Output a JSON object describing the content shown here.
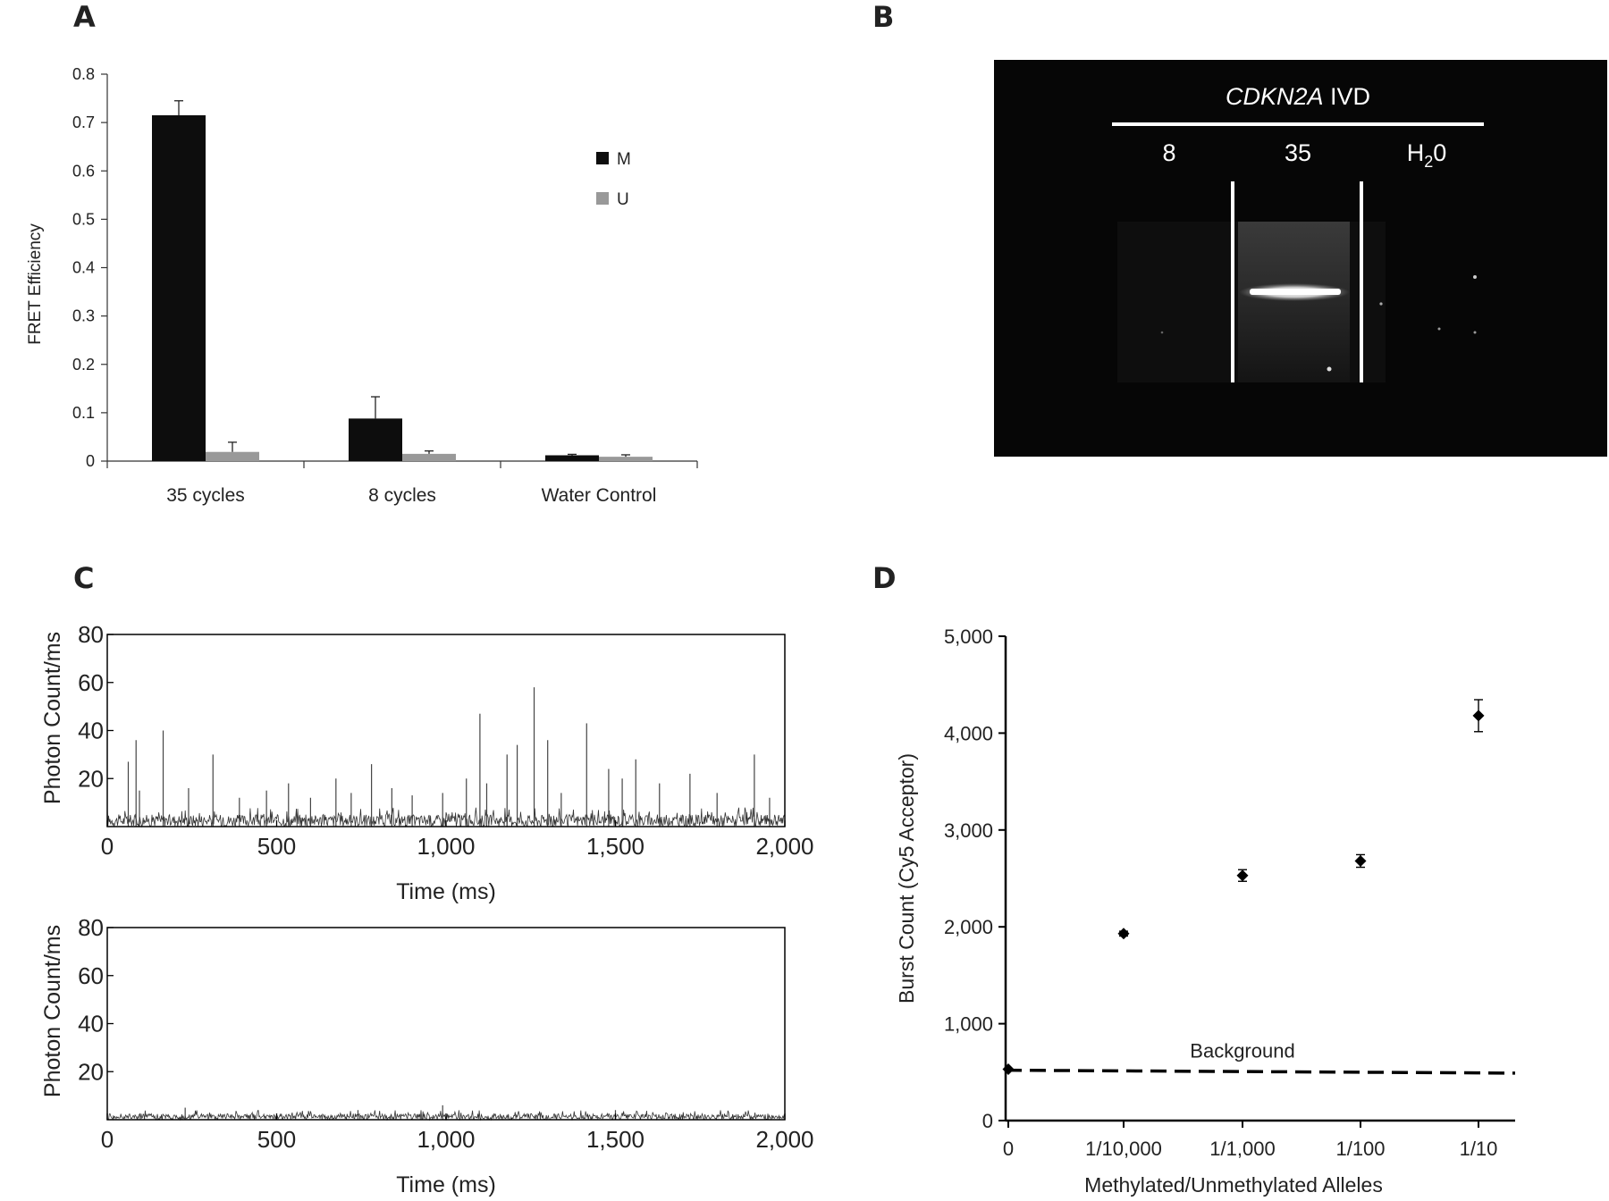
{
  "panels": {
    "a": "A",
    "b": "B",
    "c": "C",
    "d": "D"
  },
  "chart_data": [
    {
      "id": "A",
      "type": "bar",
      "ylabel": "FRET Efficiency",
      "xlabel": "",
      "title": "",
      "ylim": [
        0,
        0.8
      ],
      "yticks": [
        0,
        0.1,
        0.2,
        0.3,
        0.4,
        0.5,
        0.6,
        0.7,
        0.8
      ],
      "ytick_labels": [
        "0",
        "0.1",
        "0.2",
        "0.3",
        "0.4",
        "0.5",
        "0.6",
        "0.7",
        "0.8"
      ],
      "categories": [
        "35 cycles",
        "8 cycles",
        "Water Control"
      ],
      "series": [
        {
          "name": "M",
          "color": "#0d0d0d",
          "values": [
            0.715,
            0.088,
            0.012
          ],
          "errors": [
            0.03,
            0.045,
            0.002
          ]
        },
        {
          "name": "U",
          "color": "#999999",
          "values": [
            0.019,
            0.015,
            0.009
          ],
          "errors": [
            0.02,
            0.006,
            0.004
          ]
        }
      ],
      "legend_position": "upper-right"
    },
    {
      "id": "C-top",
      "type": "line",
      "xlabel": "Time (ms)",
      "ylabel": "Photon Count/ms",
      "xlim": [
        0,
        2000
      ],
      "ylim": [
        0,
        80
      ],
      "xticks": [
        0,
        500,
        1000,
        1500,
        2000
      ],
      "xtick_labels": [
        "0",
        "500",
        "1,000",
        "1,500",
        "2,000"
      ],
      "yticks": [
        20,
        40,
        60,
        80
      ],
      "ytick_labels": [
        "20",
        "40",
        "60",
        "80"
      ],
      "baseline_max": 5,
      "spikes": [
        {
          "x": 62,
          "y": 27
        },
        {
          "x": 85,
          "y": 36
        },
        {
          "x": 95,
          "y": 15
        },
        {
          "x": 165,
          "y": 40
        },
        {
          "x": 240,
          "y": 16
        },
        {
          "x": 312,
          "y": 30
        },
        {
          "x": 390,
          "y": 12
        },
        {
          "x": 470,
          "y": 15
        },
        {
          "x": 535,
          "y": 18
        },
        {
          "x": 600,
          "y": 12
        },
        {
          "x": 675,
          "y": 20
        },
        {
          "x": 720,
          "y": 14
        },
        {
          "x": 780,
          "y": 26
        },
        {
          "x": 840,
          "y": 16
        },
        {
          "x": 900,
          "y": 13
        },
        {
          "x": 990,
          "y": 14
        },
        {
          "x": 1060,
          "y": 20
        },
        {
          "x": 1100,
          "y": 47
        },
        {
          "x": 1120,
          "y": 18
        },
        {
          "x": 1180,
          "y": 30
        },
        {
          "x": 1210,
          "y": 34
        },
        {
          "x": 1260,
          "y": 58
        },
        {
          "x": 1300,
          "y": 36
        },
        {
          "x": 1340,
          "y": 14
        },
        {
          "x": 1415,
          "y": 43
        },
        {
          "x": 1480,
          "y": 24
        },
        {
          "x": 1520,
          "y": 20
        },
        {
          "x": 1560,
          "y": 28
        },
        {
          "x": 1630,
          "y": 18
        },
        {
          "x": 1720,
          "y": 22
        },
        {
          "x": 1800,
          "y": 14
        },
        {
          "x": 1910,
          "y": 30
        },
        {
          "x": 1955,
          "y": 12
        }
      ]
    },
    {
      "id": "C-bottom",
      "type": "line",
      "xlabel": "Time (ms)",
      "ylabel": "Photon Count/ms",
      "xlim": [
        0,
        2000
      ],
      "ylim": [
        0,
        80
      ],
      "xticks": [
        0,
        500,
        1000,
        1500,
        2000
      ],
      "xtick_labels": [
        "0",
        "500",
        "1,000",
        "1,500",
        "2,000"
      ],
      "yticks": [
        20,
        40,
        60,
        80
      ],
      "ytick_labels": [
        "20",
        "40",
        "60",
        "80"
      ],
      "baseline_max": 2.5,
      "spikes": [
        {
          "x": 230,
          "y": 5
        },
        {
          "x": 740,
          "y": 4
        },
        {
          "x": 990,
          "y": 6
        },
        {
          "x": 1500,
          "y": 4
        }
      ]
    },
    {
      "id": "D",
      "type": "scatter",
      "xlabel": "Methylated/Unmethylated Alleles",
      "ylabel": "Burst Count (Cy5 Acceptor)",
      "ylim": [
        0,
        5000
      ],
      "yticks": [
        0,
        1000,
        2000,
        3000,
        4000,
        5000
      ],
      "ytick_labels": [
        "0",
        "1,000",
        "2,000",
        "3,000",
        "4,000",
        "5,000"
      ],
      "categories": [
        "0",
        "1/10,000",
        "1/1,000",
        "1/100",
        "1/10"
      ],
      "points": [
        {
          "x": "0",
          "y": 530,
          "error": 0
        },
        {
          "x": "1/10,000",
          "y": 1930,
          "error": 25
        },
        {
          "x": "1/1,000",
          "y": 2530,
          "error": 60
        },
        {
          "x": "1/100",
          "y": 2680,
          "error": 65
        },
        {
          "x": "1/10",
          "y": 4180,
          "error": 165
        }
      ],
      "background_line": {
        "label": "Background",
        "start": 520,
        "end": 490
      }
    }
  ],
  "gel": {
    "title_italic": "CDKN2A",
    "title_rest": " IVD",
    "lanes": [
      "8",
      "35",
      "H"
    ],
    "lane_h2o_sub": "2",
    "lane_h2o_end": "0"
  }
}
